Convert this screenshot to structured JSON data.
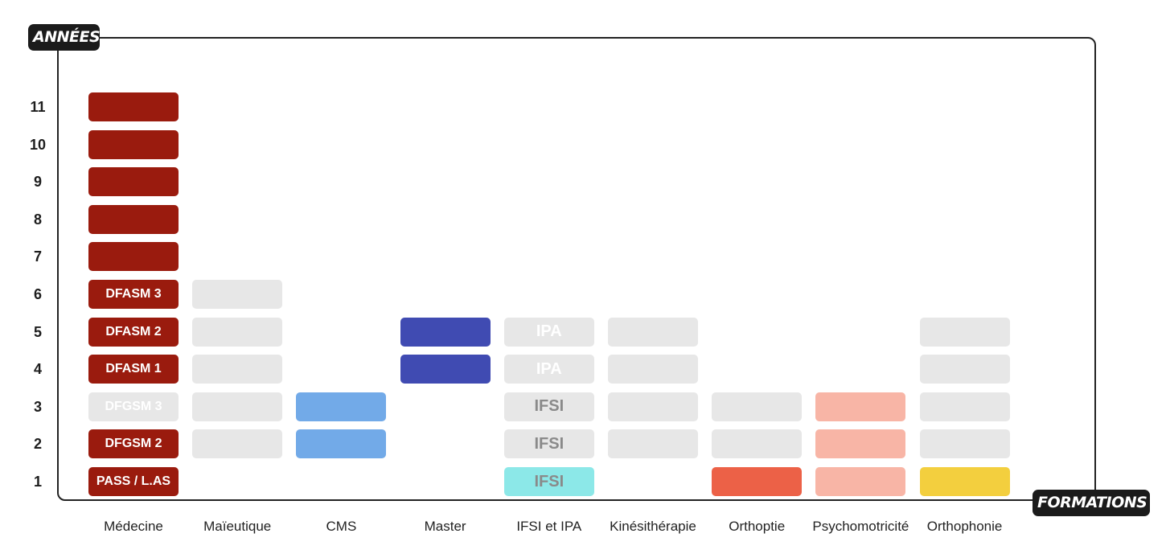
{
  "axis": {
    "y_title": "ANNÉES",
    "x_title": "FORMATIONS"
  },
  "years": [
    "1",
    "2",
    "3",
    "4",
    "5",
    "6",
    "7",
    "8",
    "9",
    "10",
    "11"
  ],
  "colors": {
    "medecine": "#9a1b0e",
    "grey": "#e7e7e7",
    "cms": "#72aae8",
    "master": "#404bb2",
    "ifsi_year1": "#8ce8e8",
    "orthoptie": "#ec6147",
    "psychomotricite": "#f8b5a6",
    "orthophonie": "#f3cf3e"
  },
  "formations": [
    {
      "label": "Médecine",
      "blocks": [
        {
          "year": 1,
          "color": "#9a1b0e",
          "text": "PASS / L.AS",
          "text_color": "#ffffff"
        },
        {
          "year": 2,
          "color": "#9a1b0e",
          "text": "DFGSM 2",
          "text_color": "#ffffff"
        },
        {
          "year": 3,
          "color": "#e7e7e7",
          "text": "DFGSM 3",
          "text_color": "#ffffff"
        },
        {
          "year": 4,
          "color": "#9a1b0e",
          "text": "DFASM 1",
          "text_color": "#ffffff"
        },
        {
          "year": 5,
          "color": "#9a1b0e",
          "text": "DFASM 2",
          "text_color": "#ffffff"
        },
        {
          "year": 6,
          "color": "#9a1b0e",
          "text": "DFASM 3",
          "text_color": "#ffffff"
        },
        {
          "year": 7,
          "color": "#9a1b0e"
        },
        {
          "year": 8,
          "color": "#9a1b0e"
        },
        {
          "year": 9,
          "color": "#9a1b0e"
        },
        {
          "year": 10,
          "color": "#9a1b0e"
        },
        {
          "year": 11,
          "color": "#9a1b0e"
        }
      ]
    },
    {
      "label": "Maïeutique",
      "blocks": [
        {
          "year": 2,
          "color": "#e7e7e7"
        },
        {
          "year": 3,
          "color": "#e7e7e7"
        },
        {
          "year": 4,
          "color": "#e7e7e7"
        },
        {
          "year": 5,
          "color": "#e7e7e7"
        },
        {
          "year": 6,
          "color": "#e7e7e7"
        }
      ]
    },
    {
      "label": "CMS",
      "blocks": [
        {
          "year": 2,
          "color": "#72aae8"
        },
        {
          "year": 3,
          "color": "#72aae8"
        }
      ]
    },
    {
      "label": "Master",
      "blocks": [
        {
          "year": 4,
          "color": "#404bb2"
        },
        {
          "year": 5,
          "color": "#404bb2"
        }
      ]
    },
    {
      "label": "IFSI et IPA",
      "blocks": [
        {
          "year": 1,
          "color": "#8ce8e8",
          "text": "IFSI",
          "text_color": "#8a8a8a",
          "big": true
        },
        {
          "year": 2,
          "color": "#e7e7e7",
          "text": "IFSI",
          "text_color": "#8a8a8a",
          "big": true
        },
        {
          "year": 3,
          "color": "#e7e7e7",
          "text": "IFSI",
          "text_color": "#8a8a8a",
          "big": true
        },
        {
          "year": 4,
          "color": "#e7e7e7",
          "text": "IPA",
          "text_color": "#ffffff",
          "big": true
        },
        {
          "year": 5,
          "color": "#e7e7e7",
          "text": "IPA",
          "text_color": "#ffffff",
          "big": true
        }
      ]
    },
    {
      "label": "Kinésithérapie",
      "blocks": [
        {
          "year": 2,
          "color": "#e7e7e7"
        },
        {
          "year": 3,
          "color": "#e7e7e7"
        },
        {
          "year": 4,
          "color": "#e7e7e7"
        },
        {
          "year": 5,
          "color": "#e7e7e7"
        }
      ]
    },
    {
      "label": "Orthoptie",
      "blocks": [
        {
          "year": 1,
          "color": "#ec6147"
        },
        {
          "year": 2,
          "color": "#e7e7e7"
        },
        {
          "year": 3,
          "color": "#e7e7e7"
        }
      ]
    },
    {
      "label": "Psychomotricité",
      "blocks": [
        {
          "year": 1,
          "color": "#f8b5a6"
        },
        {
          "year": 2,
          "color": "#f8b5a6"
        },
        {
          "year": 3,
          "color": "#f8b5a6"
        }
      ]
    },
    {
      "label": "Orthophonie",
      "blocks": [
        {
          "year": 1,
          "color": "#f3cf3e"
        },
        {
          "year": 2,
          "color": "#e7e7e7"
        },
        {
          "year": 3,
          "color": "#e7e7e7"
        },
        {
          "year": 4,
          "color": "#e7e7e7"
        },
        {
          "year": 5,
          "color": "#e7e7e7"
        }
      ]
    }
  ]
}
